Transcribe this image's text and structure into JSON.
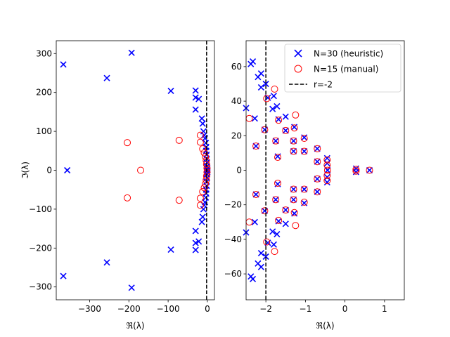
{
  "chart_data": [
    {
      "type": "scatter",
      "panel": "left",
      "title": "",
      "xlabel": "ℜ(λ)",
      "ylabel": "ℑ(λ)",
      "xlim": [
        -385,
        18
      ],
      "ylim": [
        -333,
        333
      ],
      "xticks": [
        -300,
        -200,
        -100,
        0
      ],
      "yticks": [
        -300,
        -200,
        -100,
        0,
        100,
        200,
        300
      ],
      "xtick_labels": [
        "−300",
        "−200",
        "−100",
        "0"
      ],
      "ytick_labels": [
        "−300",
        "−200",
        "−100",
        "0",
        "100",
        "200",
        "300"
      ],
      "vline": {
        "x": -2,
        "style": "dashed",
        "color": "#000000"
      },
      "series": [
        {
          "name": "N=30 (heuristic)",
          "marker": "x",
          "color": "#0000ff",
          "points": [
            [
              -367,
              272
            ],
            [
              -367,
              -272
            ],
            [
              -193,
              302
            ],
            [
              -193,
              -302
            ],
            [
              -256,
              237
            ],
            [
              -256,
              -237
            ],
            [
              -357,
              0
            ],
            [
              -93,
              204
            ],
            [
              -93,
              -204
            ],
            [
              -30,
              205
            ],
            [
              -30,
              -205
            ],
            [
              -30,
              187
            ],
            [
              -30,
              -187
            ],
            [
              -22,
              183
            ],
            [
              -22,
              -183
            ],
            [
              -30,
              156
            ],
            [
              -30,
              -156
            ],
            [
              -14,
              133
            ],
            [
              -14,
              -133
            ],
            [
              -12,
              120
            ],
            [
              -12,
              -120
            ],
            [
              -10,
              100
            ],
            [
              -10,
              -100
            ],
            [
              -8,
              90
            ],
            [
              -8,
              -90
            ],
            [
              -6,
              82
            ],
            [
              -6,
              -82
            ],
            [
              -4,
              70
            ],
            [
              -4,
              -70
            ],
            [
              -3,
              60
            ],
            [
              -3,
              -60
            ],
            [
              -3,
              50
            ],
            [
              -3,
              -50
            ],
            [
              -2,
              40
            ],
            [
              -2,
              -40
            ],
            [
              -2,
              30
            ],
            [
              -2,
              -30
            ],
            [
              -1,
              20
            ],
            [
              -1,
              -20
            ],
            [
              -1,
              10
            ],
            [
              -1,
              -10
            ],
            [
              0,
              5
            ],
            [
              0,
              -5
            ],
            [
              0,
              0
            ]
          ]
        },
        {
          "name": "N=15 (manual)",
          "marker": "o",
          "color": "#ff0000",
          "points": [
            [
              -204,
              71
            ],
            [
              -204,
              -71
            ],
            [
              -170,
              0
            ],
            [
              -72,
              77
            ],
            [
              -72,
              -77
            ],
            [
              -18,
              90
            ],
            [
              -18,
              -90
            ],
            [
              -18,
              72
            ],
            [
              -18,
              -72
            ],
            [
              -12,
              55
            ],
            [
              -12,
              -55
            ],
            [
              -8,
              45
            ],
            [
              -8,
              -45
            ],
            [
              -5,
              35
            ],
            [
              -5,
              -35
            ],
            [
              -3,
              25
            ],
            [
              -3,
              -25
            ],
            [
              -2,
              15
            ],
            [
              -2,
              -15
            ],
            [
              -1,
              5
            ],
            [
              -1,
              -5
            ]
          ]
        }
      ]
    },
    {
      "type": "scatter",
      "panel": "right",
      "title": "",
      "xlabel": "ℜ(λ)",
      "ylabel": "",
      "xlim": [
        -2.5,
        1.5
      ],
      "ylim": [
        -75,
        75
      ],
      "xticks": [
        -2,
        -1,
        0,
        1
      ],
      "yticks": [
        -60,
        -40,
        -20,
        0,
        20,
        40,
        60
      ],
      "xtick_labels": [
        "−2",
        "−1",
        "0",
        "1"
      ],
      "ytick_labels": [
        "−60",
        "−40",
        "−20",
        "0",
        "20",
        "40",
        "60"
      ],
      "vline": {
        "x": -2,
        "style": "dashed",
        "color": "#000000"
      },
      "legend_position": "top-right",
      "series": [
        {
          "name": "N=30 (heuristic)",
          "marker": "x",
          "color": "#0000ff",
          "points": [
            [
              -2.33,
              63
            ],
            [
              -2.33,
              -63
            ],
            [
              -2.38,
              61.5
            ],
            [
              -2.38,
              -61.5
            ],
            [
              -2.12,
              56
            ],
            [
              -2.12,
              -56
            ],
            [
              -2.2,
              54
            ],
            [
              -2.2,
              -54
            ],
            [
              -2.0,
              50
            ],
            [
              -2.0,
              -50
            ],
            [
              -2.12,
              48
            ],
            [
              -2.12,
              -48
            ],
            [
              -1.8,
              43
            ],
            [
              -1.8,
              -43
            ],
            [
              -1.95,
              42
            ],
            [
              -1.95,
              -42
            ],
            [
              -1.72,
              37
            ],
            [
              -1.72,
              -37
            ],
            [
              -2.5,
              36
            ],
            [
              -2.5,
              -36
            ],
            [
              -1.5,
              31
            ],
            [
              -1.5,
              -31
            ],
            [
              -2.28,
              30
            ],
            [
              -2.28,
              -30
            ],
            [
              -1.83,
              35.5
            ],
            [
              -1.83,
              -35.5
            ],
            [
              -1.68,
              29.5
            ],
            [
              -1.68,
              -29.5
            ],
            [
              -2.03,
              23.5
            ],
            [
              -2.03,
              -23.5
            ],
            [
              -1.5,
              23
            ],
            [
              -1.5,
              -23
            ],
            [
              -1.28,
              25
            ],
            [
              -1.28,
              -25
            ],
            [
              -1.75,
              17
            ],
            [
              -1.75,
              -17
            ],
            [
              -1.3,
              17
            ],
            [
              -1.3,
              -17
            ],
            [
              -1.03,
              19
            ],
            [
              -1.03,
              -19
            ],
            [
              -2.25,
              14
            ],
            [
              -2.25,
              -14
            ],
            [
              -1.3,
              11
            ],
            [
              -1.3,
              -11
            ],
            [
              -1.03,
              11
            ],
            [
              -1.03,
              -11
            ],
            [
              -0.7,
              12.5
            ],
            [
              -0.7,
              -12.5
            ],
            [
              -1.7,
              8
            ],
            [
              -1.7,
              -8
            ],
            [
              -0.7,
              5
            ],
            [
              -0.7,
              -5
            ],
            [
              -0.45,
              7
            ],
            [
              -0.45,
              -7
            ],
            [
              -0.45,
              4
            ],
            [
              -0.45,
              -4
            ],
            [
              -0.44,
              0
            ],
            [
              0.28,
              1
            ],
            [
              0.28,
              -1
            ],
            [
              0.62,
              0
            ]
          ]
        },
        {
          "name": "N=15 (manual)",
          "marker": "o",
          "color": "#ff0000",
          "points": [
            [
              -1.78,
              47
            ],
            [
              -1.78,
              -47
            ],
            [
              -1.98,
              41.5
            ],
            [
              -1.98,
              -41.5
            ],
            [
              -2.42,
              30
            ],
            [
              -2.42,
              -30
            ],
            [
              -1.25,
              32
            ],
            [
              -1.25,
              -32
            ],
            [
              -1.68,
              29
            ],
            [
              -1.68,
              -29
            ],
            [
              -2.03,
              23.5
            ],
            [
              -2.03,
              -23.5
            ],
            [
              -1.5,
              23
            ],
            [
              -1.5,
              -23
            ],
            [
              -1.28,
              24.5
            ],
            [
              -1.28,
              -24.5
            ],
            [
              -1.75,
              17
            ],
            [
              -1.75,
              -17
            ],
            [
              -1.3,
              17
            ],
            [
              -1.3,
              -17
            ],
            [
              -1.03,
              18.5
            ],
            [
              -1.03,
              -18.5
            ],
            [
              -2.25,
              14
            ],
            [
              -2.25,
              -14
            ],
            [
              -1.3,
              11
            ],
            [
              -1.3,
              -11
            ],
            [
              -1.03,
              11
            ],
            [
              -1.03,
              -11
            ],
            [
              -0.7,
              12.5
            ],
            [
              -0.7,
              -12.5
            ],
            [
              -1.7,
              7.5
            ],
            [
              -1.7,
              -7.5
            ],
            [
              -0.7,
              5
            ],
            [
              -0.7,
              -5
            ],
            [
              -0.45,
              6
            ],
            [
              -0.45,
              -6
            ],
            [
              -0.45,
              3
            ],
            [
              -0.45,
              -3
            ],
            [
              -0.44,
              0
            ],
            [
              0.28,
              0.5
            ],
            [
              0.28,
              -0.5
            ],
            [
              0.62,
              0
            ]
          ]
        }
      ]
    }
  ],
  "legend": {
    "items": [
      {
        "label": "N=30 (heuristic)",
        "marker": "x",
        "color": "#0000ff"
      },
      {
        "label": "N=15 (manual)",
        "marker": "o",
        "color": "#ff0000"
      },
      {
        "label": "r=-2",
        "marker": "dashed-line",
        "color": "#000000"
      }
    ]
  }
}
